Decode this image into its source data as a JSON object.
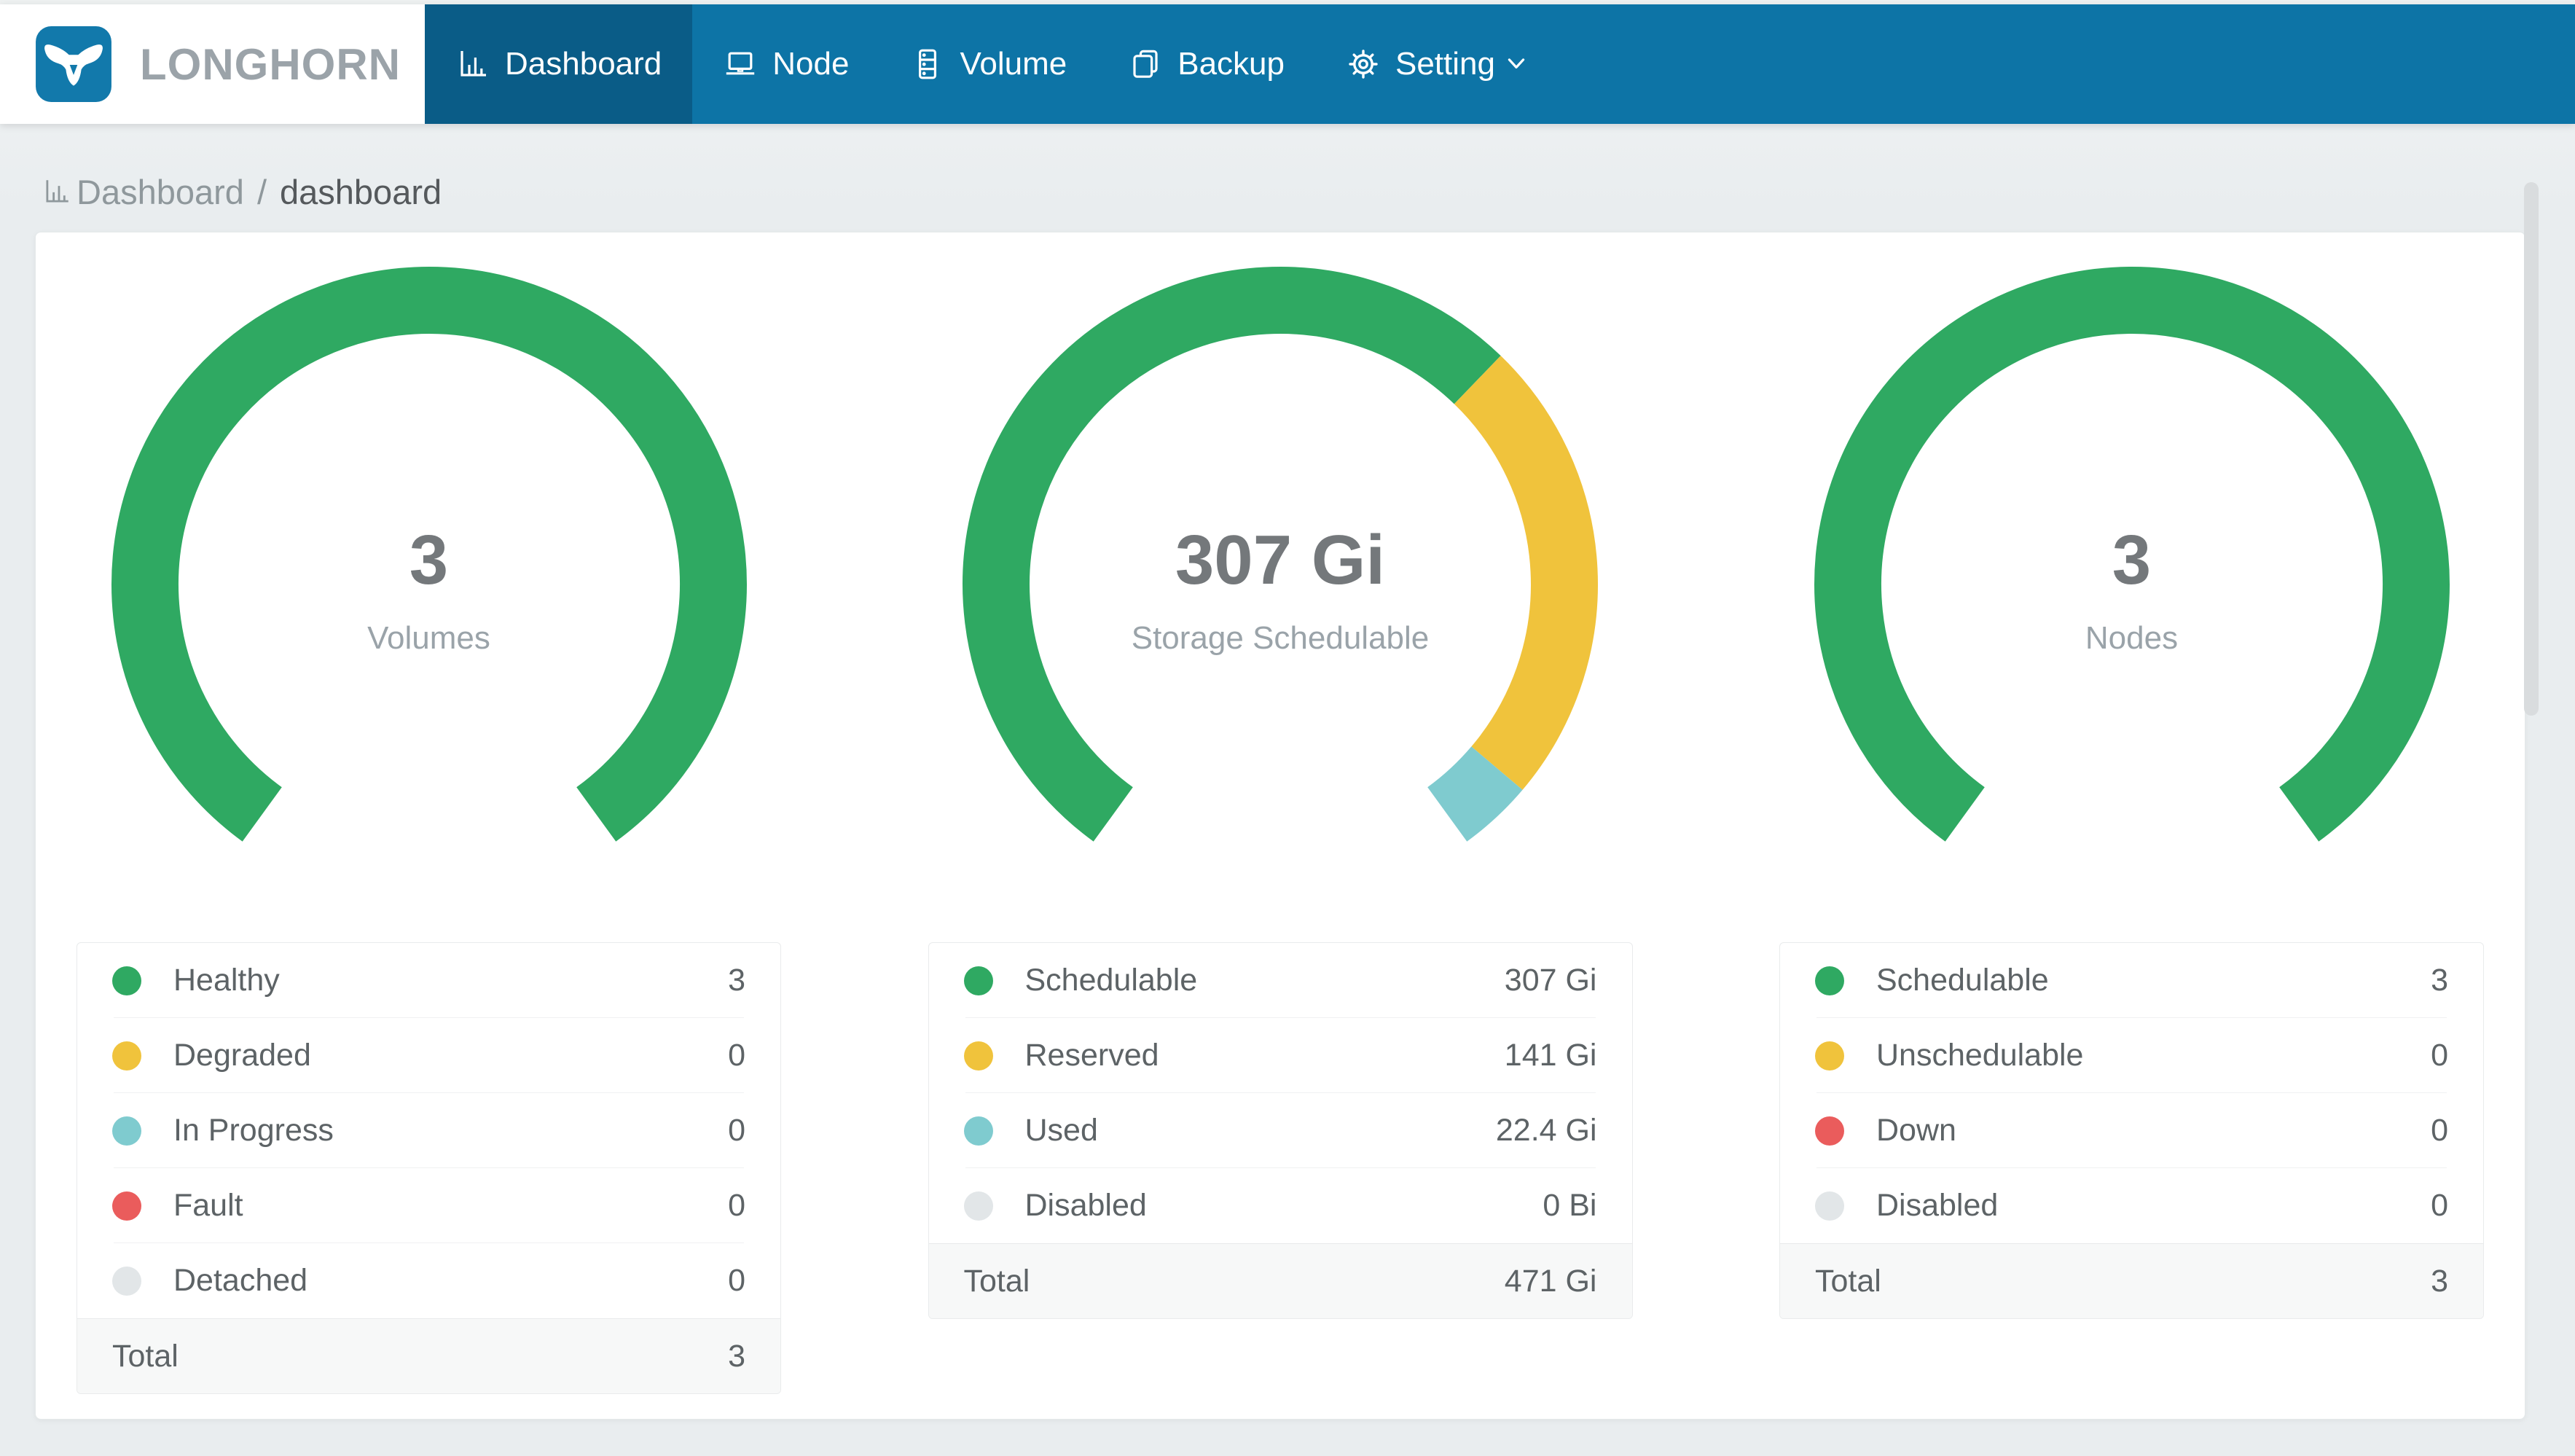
{
  "nav": {
    "brand": "LONGHORN",
    "items": [
      {
        "label": "Dashboard",
        "icon": "bar-chart-icon",
        "active": true
      },
      {
        "label": "Node",
        "icon": "laptop-icon",
        "active": false
      },
      {
        "label": "Volume",
        "icon": "database-icon",
        "active": false
      },
      {
        "label": "Backup",
        "icon": "copy-icon",
        "active": false
      },
      {
        "label": "Setting",
        "icon": "gear-icon",
        "active": false,
        "has_dropdown": true,
        "dropdown_icon": "chevron-down-icon"
      }
    ]
  },
  "breadcrumb": {
    "icon": "bar-chart-icon",
    "root": "Dashboard",
    "separator": "/",
    "current": "dashboard"
  },
  "colors": {
    "nav_blue": "#0d74a6",
    "nav_active_blue": "#0a5c87",
    "logo_blue": "#1279ab",
    "green": "#2fa962",
    "yellow": "#f0c33c",
    "teal": "#7fcbcf",
    "red": "#ea5c5c",
    "gray": "#e2e6e8",
    "page_background": "#e9edef"
  },
  "chart_data": [
    {
      "type": "donut-gauge",
      "title": "Volumes",
      "center_value": "3",
      "center_label": "Volumes",
      "arc_start_degrees": 126,
      "arc_span_degrees": 288,
      "segments": [
        {
          "label": "Healthy",
          "value": 3,
          "display": "3",
          "color": "#2fa962"
        },
        {
          "label": "Degraded",
          "value": 0,
          "display": "0",
          "color": "#f0c33c"
        },
        {
          "label": "In Progress",
          "value": 0,
          "display": "0",
          "color": "#7fcbcf"
        },
        {
          "label": "Fault",
          "value": 0,
          "display": "0",
          "color": "#ea5c5c"
        },
        {
          "label": "Detached",
          "value": 0,
          "display": "0",
          "color": "#e2e6e8"
        }
      ],
      "total": {
        "label": "Total",
        "display": "3"
      }
    },
    {
      "type": "donut-gauge",
      "title": "Storage Schedulable",
      "center_value": "307 Gi",
      "center_label": "Storage Schedulable",
      "arc_start_degrees": 126,
      "arc_span_degrees": 288,
      "segments": [
        {
          "label": "Schedulable",
          "value": 307,
          "display": "307 Gi",
          "color": "#2fa962"
        },
        {
          "label": "Reserved",
          "value": 141,
          "display": "141 Gi",
          "color": "#f0c33c"
        },
        {
          "label": "Used",
          "value": 22.4,
          "display": "22.4 Gi",
          "color": "#7fcbcf"
        },
        {
          "label": "Disabled",
          "value": 0,
          "display": "0 Bi",
          "color": "#e2e6e8"
        }
      ],
      "total": {
        "label": "Total",
        "display": "471 Gi"
      }
    },
    {
      "type": "donut-gauge",
      "title": "Nodes",
      "center_value": "3",
      "center_label": "Nodes",
      "arc_start_degrees": 126,
      "arc_span_degrees": 288,
      "segments": [
        {
          "label": "Schedulable",
          "value": 3,
          "display": "3",
          "color": "#2fa962"
        },
        {
          "label": "Unschedulable",
          "value": 0,
          "display": "0",
          "color": "#f0c33c"
        },
        {
          "label": "Down",
          "value": 0,
          "display": "0",
          "color": "#ea5c5c"
        },
        {
          "label": "Disabled",
          "value": 0,
          "display": "0",
          "color": "#e2e6e8"
        }
      ],
      "total": {
        "label": "Total",
        "display": "3"
      }
    }
  ]
}
